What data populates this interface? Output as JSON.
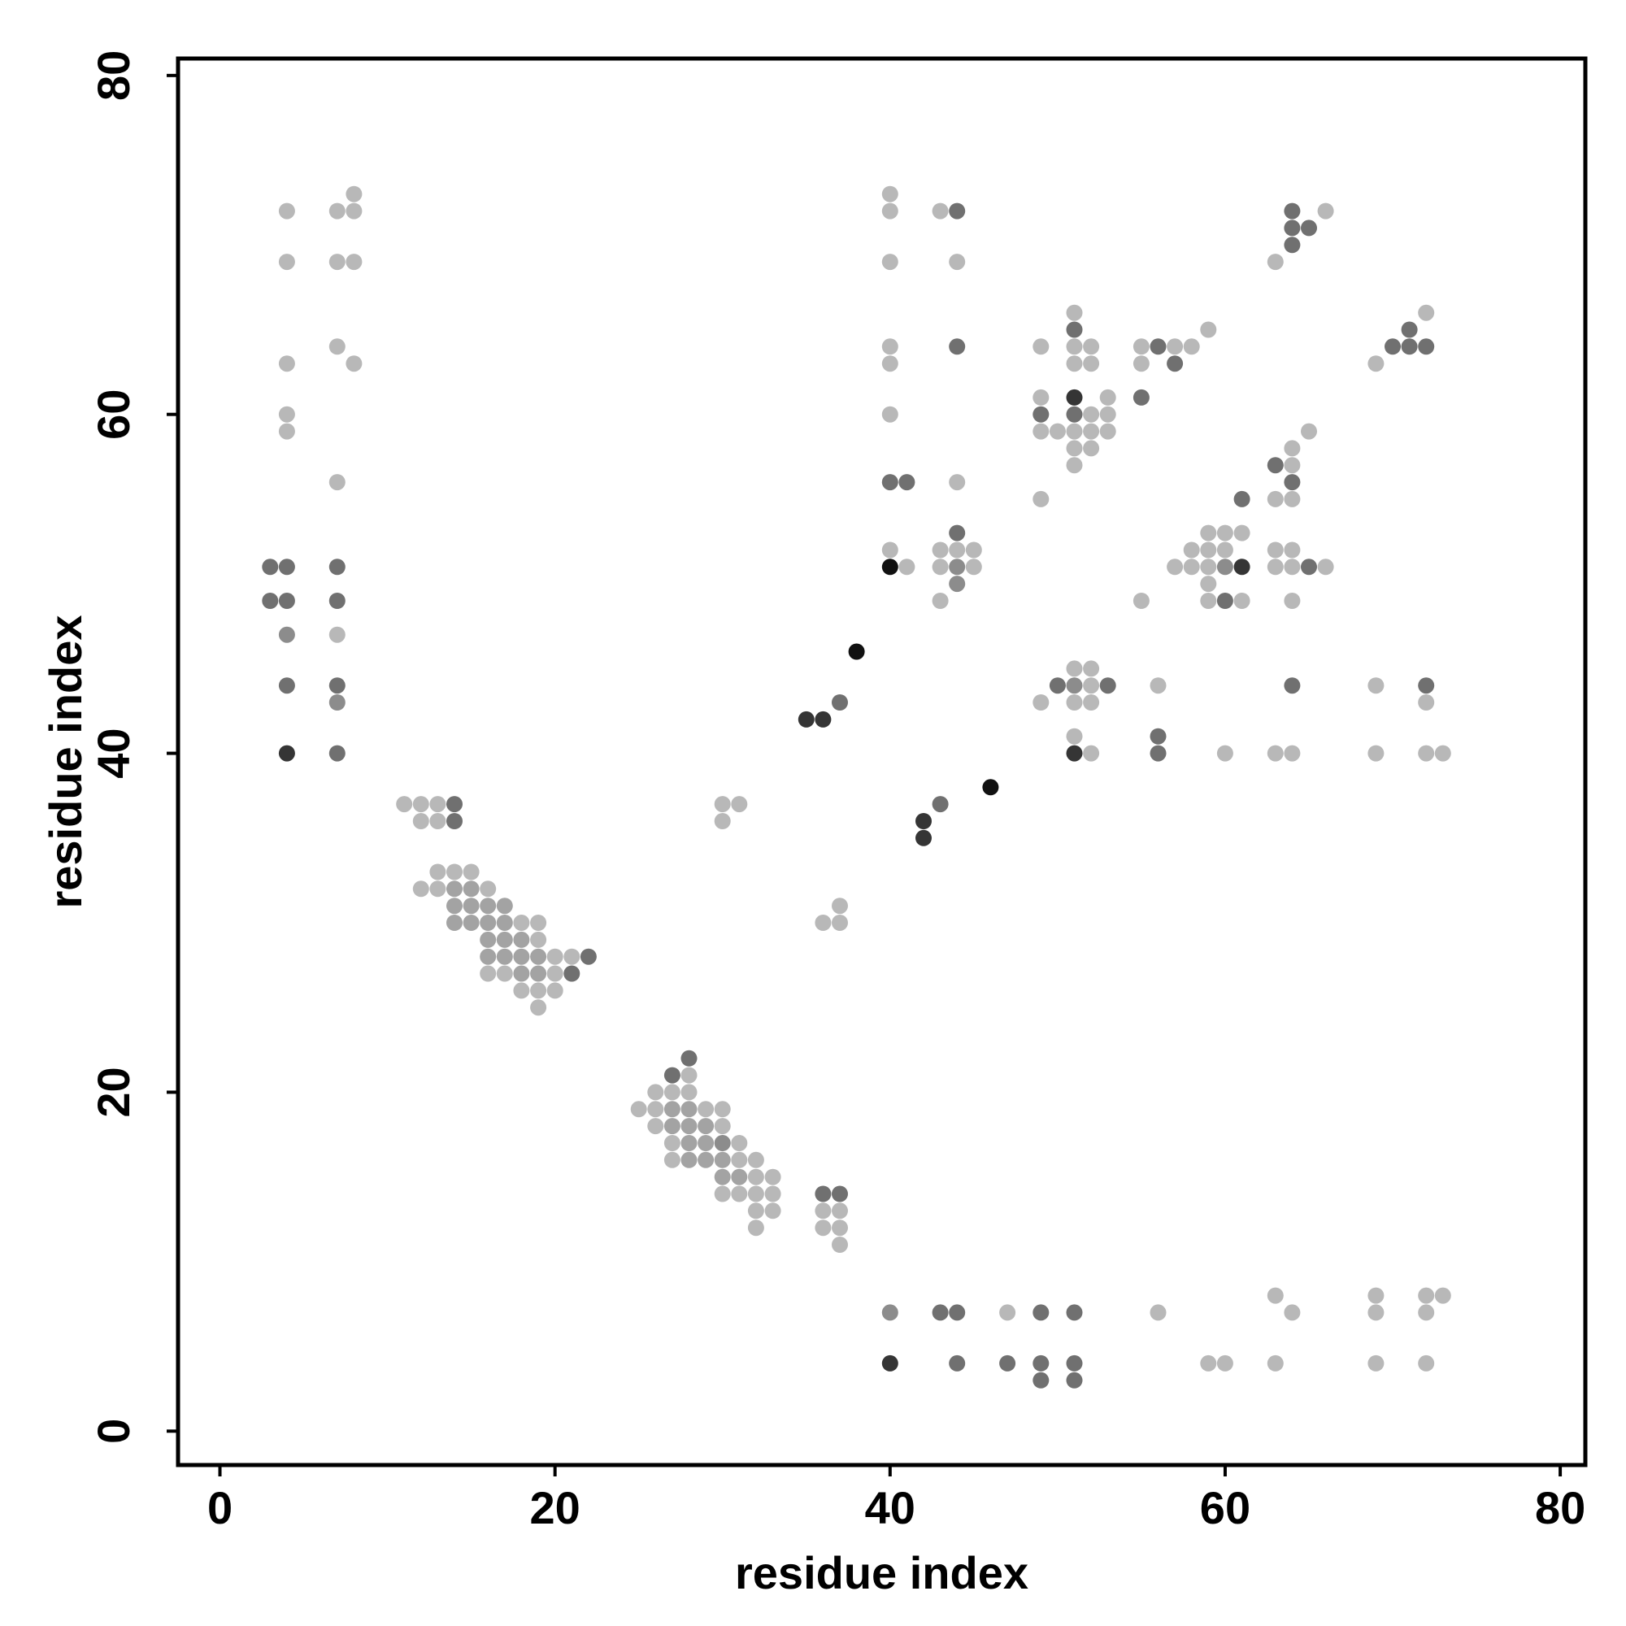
{
  "chart_data": {
    "type": "scatter",
    "title": "",
    "xlabel": "residue index",
    "ylabel": "residue index",
    "xlim": [
      -2.5,
      81.5
    ],
    "ylim": [
      -2,
      81
    ],
    "xticks": [
      0,
      20,
      40,
      60,
      80
    ],
    "yticks": [
      0,
      20,
      40,
      60,
      80
    ],
    "grid": false,
    "legend": "none",
    "shade_colors": {
      "1": "#b8b8b8",
      "2": "#a3a3a3",
      "3": "#8c8c8c",
      "4": "#707070",
      "5": "#353535",
      "6": "#111111"
    },
    "points": [
      {
        "x": 4,
        "y": 72,
        "s": 1
      },
      {
        "x": 4,
        "y": 69,
        "s": 1
      },
      {
        "x": 4,
        "y": 63,
        "s": 1
      },
      {
        "x": 4,
        "y": 60,
        "s": 1
      },
      {
        "x": 4,
        "y": 59,
        "s": 1
      },
      {
        "x": 7,
        "y": 72,
        "s": 1
      },
      {
        "x": 8,
        "y": 73,
        "s": 1
      },
      {
        "x": 8,
        "y": 72,
        "s": 1
      },
      {
        "x": 7,
        "y": 69,
        "s": 1
      },
      {
        "x": 8,
        "y": 69,
        "s": 1
      },
      {
        "x": 7,
        "y": 64,
        "s": 1
      },
      {
        "x": 8,
        "y": 63,
        "s": 1
      },
      {
        "x": 7,
        "y": 56,
        "s": 1
      },
      {
        "x": 3,
        "y": 51,
        "s": 4
      },
      {
        "x": 4,
        "y": 51,
        "s": 4
      },
      {
        "x": 3,
        "y": 49,
        "s": 4
      },
      {
        "x": 4,
        "y": 49,
        "s": 4
      },
      {
        "x": 4,
        "y": 47,
        "s": 3
      },
      {
        "x": 4,
        "y": 44,
        "s": 4
      },
      {
        "x": 4,
        "y": 40,
        "s": 5
      },
      {
        "x": 7,
        "y": 51,
        "s": 4
      },
      {
        "x": 7,
        "y": 49,
        "s": 4
      },
      {
        "x": 7,
        "y": 47,
        "s": 1
      },
      {
        "x": 7,
        "y": 44,
        "s": 4
      },
      {
        "x": 7,
        "y": 43,
        "s": 3
      },
      {
        "x": 7,
        "y": 40,
        "s": 4
      },
      {
        "x": 11,
        "y": 37,
        "s": 1
      },
      {
        "x": 12,
        "y": 37,
        "s": 1
      },
      {
        "x": 13,
        "y": 37,
        "s": 1
      },
      {
        "x": 14,
        "y": 37,
        "s": 4
      },
      {
        "x": 12,
        "y": 36,
        "s": 1
      },
      {
        "x": 13,
        "y": 36,
        "s": 1
      },
      {
        "x": 14,
        "y": 36,
        "s": 4
      },
      {
        "x": 13,
        "y": 33,
        "s": 1
      },
      {
        "x": 14,
        "y": 33,
        "s": 1
      },
      {
        "x": 15,
        "y": 33,
        "s": 1
      },
      {
        "x": 12,
        "y": 32,
        "s": 1
      },
      {
        "x": 13,
        "y": 32,
        "s": 1
      },
      {
        "x": 14,
        "y": 32,
        "s": 2
      },
      {
        "x": 15,
        "y": 32,
        "s": 2
      },
      {
        "x": 16,
        "y": 32,
        "s": 1
      },
      {
        "x": 14,
        "y": 31,
        "s": 2
      },
      {
        "x": 15,
        "y": 31,
        "s": 2
      },
      {
        "x": 16,
        "y": 31,
        "s": 2
      },
      {
        "x": 17,
        "y": 31,
        "s": 2
      },
      {
        "x": 14,
        "y": 30,
        "s": 2
      },
      {
        "x": 15,
        "y": 30,
        "s": 2
      },
      {
        "x": 16,
        "y": 30,
        "s": 2
      },
      {
        "x": 17,
        "y": 30,
        "s": 2
      },
      {
        "x": 18,
        "y": 30,
        "s": 1
      },
      {
        "x": 19,
        "y": 30,
        "s": 1
      },
      {
        "x": 16,
        "y": 29,
        "s": 2
      },
      {
        "x": 17,
        "y": 29,
        "s": 2
      },
      {
        "x": 18,
        "y": 29,
        "s": 2
      },
      {
        "x": 19,
        "y": 29,
        "s": 1
      },
      {
        "x": 16,
        "y": 28,
        "s": 2
      },
      {
        "x": 17,
        "y": 28,
        "s": 2
      },
      {
        "x": 18,
        "y": 28,
        "s": 2
      },
      {
        "x": 19,
        "y": 28,
        "s": 2
      },
      {
        "x": 20,
        "y": 28,
        "s": 1
      },
      {
        "x": 21,
        "y": 28,
        "s": 1
      },
      {
        "x": 22,
        "y": 28,
        "s": 4
      },
      {
        "x": 16,
        "y": 27,
        "s": 1
      },
      {
        "x": 17,
        "y": 27,
        "s": 1
      },
      {
        "x": 18,
        "y": 27,
        "s": 2
      },
      {
        "x": 19,
        "y": 27,
        "s": 2
      },
      {
        "x": 20,
        "y": 27,
        "s": 1
      },
      {
        "x": 21,
        "y": 27,
        "s": 4
      },
      {
        "x": 18,
        "y": 26,
        "s": 1
      },
      {
        "x": 19,
        "y": 26,
        "s": 1
      },
      {
        "x": 20,
        "y": 26,
        "s": 1
      },
      {
        "x": 19,
        "y": 25,
        "s": 1
      },
      {
        "x": 28,
        "y": 22,
        "s": 4
      },
      {
        "x": 27,
        "y": 21,
        "s": 4
      },
      {
        "x": 28,
        "y": 21,
        "s": 1
      },
      {
        "x": 26,
        "y": 20,
        "s": 1
      },
      {
        "x": 27,
        "y": 20,
        "s": 1
      },
      {
        "x": 28,
        "y": 20,
        "s": 1
      },
      {
        "x": 25,
        "y": 19,
        "s": 1
      },
      {
        "x": 26,
        "y": 19,
        "s": 1
      },
      {
        "x": 27,
        "y": 19,
        "s": 2
      },
      {
        "x": 28,
        "y": 19,
        "s": 2
      },
      {
        "x": 29,
        "y": 19,
        "s": 1
      },
      {
        "x": 30,
        "y": 19,
        "s": 1
      },
      {
        "x": 26,
        "y": 18,
        "s": 1
      },
      {
        "x": 27,
        "y": 18,
        "s": 2
      },
      {
        "x": 28,
        "y": 18,
        "s": 2
      },
      {
        "x": 29,
        "y": 18,
        "s": 2
      },
      {
        "x": 30,
        "y": 18,
        "s": 1
      },
      {
        "x": 27,
        "y": 17,
        "s": 1
      },
      {
        "x": 28,
        "y": 17,
        "s": 2
      },
      {
        "x": 29,
        "y": 17,
        "s": 2
      },
      {
        "x": 30,
        "y": 17,
        "s": 3
      },
      {
        "x": 31,
        "y": 17,
        "s": 1
      },
      {
        "x": 27,
        "y": 16,
        "s": 1
      },
      {
        "x": 28,
        "y": 16,
        "s": 2
      },
      {
        "x": 29,
        "y": 16,
        "s": 2
      },
      {
        "x": 30,
        "y": 16,
        "s": 2
      },
      {
        "x": 31,
        "y": 16,
        "s": 1
      },
      {
        "x": 32,
        "y": 16,
        "s": 1
      },
      {
        "x": 30,
        "y": 15,
        "s": 2
      },
      {
        "x": 31,
        "y": 15,
        "s": 2
      },
      {
        "x": 32,
        "y": 15,
        "s": 1
      },
      {
        "x": 33,
        "y": 15,
        "s": 1
      },
      {
        "x": 30,
        "y": 14,
        "s": 1
      },
      {
        "x": 31,
        "y": 14,
        "s": 1
      },
      {
        "x": 32,
        "y": 14,
        "s": 1
      },
      {
        "x": 33,
        "y": 14,
        "s": 1
      },
      {
        "x": 32,
        "y": 13,
        "s": 1
      },
      {
        "x": 33,
        "y": 13,
        "s": 1
      },
      {
        "x": 32,
        "y": 12,
        "s": 1
      },
      {
        "x": 30,
        "y": 37,
        "s": 1
      },
      {
        "x": 31,
        "y": 37,
        "s": 1
      },
      {
        "x": 30,
        "y": 36,
        "s": 1
      },
      {
        "x": 37,
        "y": 31,
        "s": 1
      },
      {
        "x": 36,
        "y": 30,
        "s": 1
      },
      {
        "x": 37,
        "y": 30,
        "s": 1
      },
      {
        "x": 36,
        "y": 14,
        "s": 4
      },
      {
        "x": 37,
        "y": 14,
        "s": 4
      },
      {
        "x": 36,
        "y": 13,
        "s": 1
      },
      {
        "x": 37,
        "y": 13,
        "s": 1
      },
      {
        "x": 36,
        "y": 12,
        "s": 1
      },
      {
        "x": 37,
        "y": 12,
        "s": 1
      },
      {
        "x": 37,
        "y": 11,
        "s": 1
      },
      {
        "x": 38,
        "y": 46,
        "s": 6
      },
      {
        "x": 35,
        "y": 42,
        "s": 5
      },
      {
        "x": 36,
        "y": 42,
        "s": 5
      },
      {
        "x": 37,
        "y": 43,
        "s": 4
      },
      {
        "x": 46,
        "y": 38,
        "s": 6
      },
      {
        "x": 42,
        "y": 36,
        "s": 5
      },
      {
        "x": 42,
        "y": 35,
        "s": 5
      },
      {
        "x": 43,
        "y": 37,
        "s": 4
      },
      {
        "x": 40,
        "y": 73,
        "s": 1
      },
      {
        "x": 40,
        "y": 72,
        "s": 1
      },
      {
        "x": 40,
        "y": 69,
        "s": 1
      },
      {
        "x": 40,
        "y": 64,
        "s": 1
      },
      {
        "x": 40,
        "y": 63,
        "s": 1
      },
      {
        "x": 40,
        "y": 60,
        "s": 1
      },
      {
        "x": 43,
        "y": 72,
        "s": 1
      },
      {
        "x": 44,
        "y": 72,
        "s": 4
      },
      {
        "x": 44,
        "y": 69,
        "s": 1
      },
      {
        "x": 44,
        "y": 64,
        "s": 4
      },
      {
        "x": 40,
        "y": 56,
        "s": 4
      },
      {
        "x": 41,
        "y": 56,
        "s": 4
      },
      {
        "x": 44,
        "y": 56,
        "s": 1
      },
      {
        "x": 40,
        "y": 52,
        "s": 1
      },
      {
        "x": 40,
        "y": 51,
        "s": 6
      },
      {
        "x": 41,
        "y": 51,
        "s": 1
      },
      {
        "x": 44,
        "y": 53,
        "s": 4
      },
      {
        "x": 43,
        "y": 52,
        "s": 1
      },
      {
        "x": 44,
        "y": 52,
        "s": 1
      },
      {
        "x": 45,
        "y": 52,
        "s": 1
      },
      {
        "x": 43,
        "y": 51,
        "s": 1
      },
      {
        "x": 44,
        "y": 51,
        "s": 3
      },
      {
        "x": 45,
        "y": 51,
        "s": 1
      },
      {
        "x": 44,
        "y": 50,
        "s": 3
      },
      {
        "x": 43,
        "y": 49,
        "s": 1
      },
      {
        "x": 51,
        "y": 66,
        "s": 1
      },
      {
        "x": 51,
        "y": 65,
        "s": 4
      },
      {
        "x": 49,
        "y": 64,
        "s": 1
      },
      {
        "x": 51,
        "y": 64,
        "s": 1
      },
      {
        "x": 52,
        "y": 64,
        "s": 1
      },
      {
        "x": 51,
        "y": 63,
        "s": 1
      },
      {
        "x": 52,
        "y": 63,
        "s": 1
      },
      {
        "x": 49,
        "y": 61,
        "s": 1
      },
      {
        "x": 51,
        "y": 61,
        "s": 5
      },
      {
        "x": 53,
        "y": 61,
        "s": 1
      },
      {
        "x": 49,
        "y": 60,
        "s": 4
      },
      {
        "x": 51,
        "y": 60,
        "s": 4
      },
      {
        "x": 52,
        "y": 60,
        "s": 1
      },
      {
        "x": 53,
        "y": 60,
        "s": 1
      },
      {
        "x": 49,
        "y": 59,
        "s": 1
      },
      {
        "x": 50,
        "y": 59,
        "s": 1
      },
      {
        "x": 51,
        "y": 59,
        "s": 1
      },
      {
        "x": 52,
        "y": 59,
        "s": 1
      },
      {
        "x": 53,
        "y": 59,
        "s": 1
      },
      {
        "x": 51,
        "y": 58,
        "s": 1
      },
      {
        "x": 52,
        "y": 58,
        "s": 1
      },
      {
        "x": 51,
        "y": 57,
        "s": 1
      },
      {
        "x": 49,
        "y": 55,
        "s": 1
      },
      {
        "x": 55,
        "y": 64,
        "s": 1
      },
      {
        "x": 56,
        "y": 64,
        "s": 4
      },
      {
        "x": 57,
        "y": 64,
        "s": 1
      },
      {
        "x": 58,
        "y": 64,
        "s": 1
      },
      {
        "x": 59,
        "y": 65,
        "s": 1
      },
      {
        "x": 55,
        "y": 63,
        "s": 1
      },
      {
        "x": 57,
        "y": 63,
        "s": 4
      },
      {
        "x": 55,
        "y": 61,
        "s": 4
      },
      {
        "x": 63,
        "y": 69,
        "s": 1
      },
      {
        "x": 64,
        "y": 72,
        "s": 4
      },
      {
        "x": 66,
        "y": 72,
        "s": 1
      },
      {
        "x": 64,
        "y": 71,
        "s": 4
      },
      {
        "x": 65,
        "y": 71,
        "s": 4
      },
      {
        "x": 64,
        "y": 70,
        "s": 4
      },
      {
        "x": 72,
        "y": 66,
        "s": 1
      },
      {
        "x": 71,
        "y": 65,
        "s": 4
      },
      {
        "x": 70,
        "y": 64,
        "s": 4
      },
      {
        "x": 71,
        "y": 64,
        "s": 4
      },
      {
        "x": 72,
        "y": 64,
        "s": 4
      },
      {
        "x": 69,
        "y": 63,
        "s": 1
      },
      {
        "x": 65,
        "y": 59,
        "s": 1
      },
      {
        "x": 64,
        "y": 58,
        "s": 1
      },
      {
        "x": 63,
        "y": 57,
        "s": 4
      },
      {
        "x": 64,
        "y": 57,
        "s": 1
      },
      {
        "x": 64,
        "y": 56,
        "s": 4
      },
      {
        "x": 63,
        "y": 55,
        "s": 1
      },
      {
        "x": 64,
        "y": 55,
        "s": 1
      },
      {
        "x": 61,
        "y": 55,
        "s": 4
      },
      {
        "x": 59,
        "y": 53,
        "s": 1
      },
      {
        "x": 60,
        "y": 53,
        "s": 1
      },
      {
        "x": 61,
        "y": 53,
        "s": 1
      },
      {
        "x": 58,
        "y": 52,
        "s": 1
      },
      {
        "x": 59,
        "y": 52,
        "s": 1
      },
      {
        "x": 60,
        "y": 52,
        "s": 1
      },
      {
        "x": 63,
        "y": 52,
        "s": 1
      },
      {
        "x": 64,
        "y": 52,
        "s": 1
      },
      {
        "x": 57,
        "y": 51,
        "s": 1
      },
      {
        "x": 58,
        "y": 51,
        "s": 1
      },
      {
        "x": 59,
        "y": 51,
        "s": 1
      },
      {
        "x": 60,
        "y": 51,
        "s": 3
      },
      {
        "x": 61,
        "y": 51,
        "s": 5
      },
      {
        "x": 63,
        "y": 51,
        "s": 1
      },
      {
        "x": 64,
        "y": 51,
        "s": 1
      },
      {
        "x": 65,
        "y": 51,
        "s": 4
      },
      {
        "x": 66,
        "y": 51,
        "s": 1
      },
      {
        "x": 59,
        "y": 50,
        "s": 1
      },
      {
        "x": 55,
        "y": 49,
        "s": 1
      },
      {
        "x": 59,
        "y": 49,
        "s": 1
      },
      {
        "x": 60,
        "y": 49,
        "s": 4
      },
      {
        "x": 61,
        "y": 49,
        "s": 1
      },
      {
        "x": 64,
        "y": 49,
        "s": 1
      },
      {
        "x": 51,
        "y": 45,
        "s": 1
      },
      {
        "x": 52,
        "y": 45,
        "s": 1
      },
      {
        "x": 50,
        "y": 44,
        "s": 4
      },
      {
        "x": 51,
        "y": 44,
        "s": 3
      },
      {
        "x": 52,
        "y": 44,
        "s": 1
      },
      {
        "x": 53,
        "y": 44,
        "s": 4
      },
      {
        "x": 49,
        "y": 43,
        "s": 1
      },
      {
        "x": 51,
        "y": 43,
        "s": 1
      },
      {
        "x": 52,
        "y": 43,
        "s": 1
      },
      {
        "x": 51,
        "y": 41,
        "s": 1
      },
      {
        "x": 51,
        "y": 40,
        "s": 5
      },
      {
        "x": 52,
        "y": 40,
        "s": 1
      },
      {
        "x": 56,
        "y": 44,
        "s": 1
      },
      {
        "x": 56,
        "y": 41,
        "s": 4
      },
      {
        "x": 56,
        "y": 40,
        "s": 4
      },
      {
        "x": 60,
        "y": 40,
        "s": 1
      },
      {
        "x": 63,
        "y": 40,
        "s": 1
      },
      {
        "x": 64,
        "y": 40,
        "s": 1
      },
      {
        "x": 64,
        "y": 44,
        "s": 4
      },
      {
        "x": 69,
        "y": 44,
        "s": 1
      },
      {
        "x": 72,
        "y": 44,
        "s": 4
      },
      {
        "x": 72,
        "y": 43,
        "s": 1
      },
      {
        "x": 69,
        "y": 40,
        "s": 1
      },
      {
        "x": 72,
        "y": 40,
        "s": 1
      },
      {
        "x": 73,
        "y": 40,
        "s": 1
      },
      {
        "x": 40,
        "y": 7,
        "s": 3
      },
      {
        "x": 43,
        "y": 7,
        "s": 4
      },
      {
        "x": 44,
        "y": 7,
        "s": 4
      },
      {
        "x": 47,
        "y": 7,
        "s": 1
      },
      {
        "x": 49,
        "y": 7,
        "s": 4
      },
      {
        "x": 51,
        "y": 7,
        "s": 4
      },
      {
        "x": 56,
        "y": 7,
        "s": 1
      },
      {
        "x": 40,
        "y": 4,
        "s": 5
      },
      {
        "x": 44,
        "y": 4,
        "s": 4
      },
      {
        "x": 47,
        "y": 4,
        "s": 4
      },
      {
        "x": 49,
        "y": 4,
        "s": 4
      },
      {
        "x": 51,
        "y": 4,
        "s": 4
      },
      {
        "x": 49,
        "y": 3,
        "s": 4
      },
      {
        "x": 51,
        "y": 3,
        "s": 4
      },
      {
        "x": 59,
        "y": 4,
        "s": 1
      },
      {
        "x": 60,
        "y": 4,
        "s": 1
      },
      {
        "x": 63,
        "y": 4,
        "s": 1
      },
      {
        "x": 69,
        "y": 4,
        "s": 1
      },
      {
        "x": 72,
        "y": 4,
        "s": 1
      },
      {
        "x": 63,
        "y": 8,
        "s": 1
      },
      {
        "x": 64,
        "y": 7,
        "s": 1
      },
      {
        "x": 69,
        "y": 8,
        "s": 1
      },
      {
        "x": 69,
        "y": 7,
        "s": 1
      },
      {
        "x": 72,
        "y": 8,
        "s": 1
      },
      {
        "x": 73,
        "y": 8,
        "s": 1
      },
      {
        "x": 72,
        "y": 7,
        "s": 1
      }
    ]
  }
}
